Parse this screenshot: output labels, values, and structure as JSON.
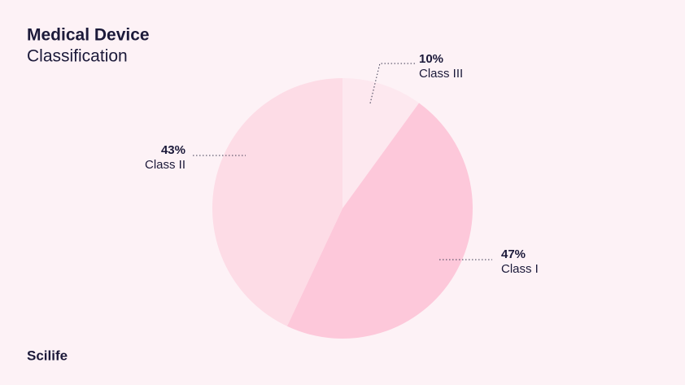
{
  "chart_data": {
    "type": "pie",
    "title": "Medical Device",
    "subtitle": "Classification",
    "categories": [
      "Class III",
      "Class I",
      "Class II"
    ],
    "values": [
      10,
      47,
      43
    ],
    "value_labels": [
      "10%",
      "47%",
      "43%"
    ],
    "colors": [
      "#fde8ef",
      "#fdc8da",
      "#fddce6"
    ]
  },
  "brand": "Scilife"
}
